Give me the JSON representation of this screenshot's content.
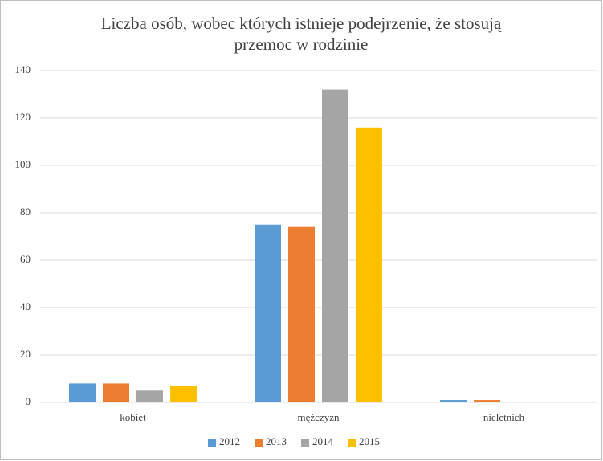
{
  "chart_data": {
    "type": "bar",
    "title": "Liczba osób, wobec których istnieje podejrzenie, że stosują przemoc w rodzinie",
    "categories": [
      "kobiet",
      "mężczyzn",
      "nieletnich"
    ],
    "series": [
      {
        "name": "2012",
        "color": "#5b9bd5",
        "values": [
          8,
          75,
          1
        ]
      },
      {
        "name": "2013",
        "color": "#ed7d31",
        "values": [
          8,
          74,
          1
        ]
      },
      {
        "name": "2014",
        "color": "#a5a5a5",
        "values": [
          5,
          132,
          0
        ]
      },
      {
        "name": "2015",
        "color": "#ffc000",
        "values": [
          7,
          116,
          0
        ]
      }
    ],
    "ylim": [
      0,
      140
    ],
    "yticks": [
      0,
      20,
      40,
      60,
      80,
      100,
      120,
      140
    ],
    "grid": true,
    "legend": "bottom"
  }
}
